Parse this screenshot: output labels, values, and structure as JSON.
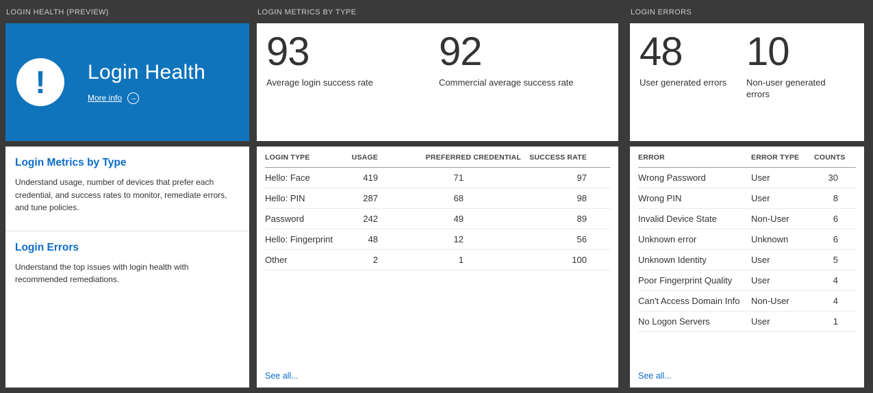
{
  "colors": {
    "background": "#3a3a3a",
    "tile_blue": "#1074bc",
    "link_blue": "#0b6cc8"
  },
  "columns": {
    "health": {
      "header": "LOGIN HEALTH (PREVIEW)",
      "tile": {
        "icon_glyph": "!",
        "title": "Login Health",
        "more_info_label": "More info",
        "arrow_glyph": "→"
      },
      "links": [
        {
          "title": "Login Metrics by Type",
          "description": "Understand usage, number of devices that prefer each credential, and success rates to monitor, remediate errors, and tune policies."
        },
        {
          "title": "Login Errors",
          "description": "Understand the top issues with login health with recommended remediations."
        }
      ]
    },
    "metrics": {
      "header": "LOGIN METRICS BY TYPE",
      "stats": [
        {
          "value": "93",
          "label": "Average login success rate"
        },
        {
          "value": "92",
          "label": "Commercial average success rate"
        }
      ],
      "table": {
        "columns": [
          "LOGIN TYPE",
          "USAGE",
          "PREFERRED CREDENTIAL",
          "SUCCESS RATE"
        ],
        "rows": [
          [
            "Hello: Face",
            "419",
            "71",
            "97"
          ],
          [
            "Hello: PIN",
            "287",
            "68",
            "98"
          ],
          [
            "Password",
            "242",
            "49",
            "89"
          ],
          [
            "Hello: Fingerprint",
            "48",
            "12",
            "56"
          ],
          [
            "Other",
            "2",
            "1",
            "100"
          ]
        ]
      },
      "see_all": "See all..."
    },
    "errors": {
      "header": "LOGIN ERRORS",
      "stats": [
        {
          "value": "48",
          "label": "User generated errors"
        },
        {
          "value": "10",
          "label": "Non-user generated errors"
        }
      ],
      "table": {
        "columns": [
          "ERROR",
          "ERROR TYPE",
          "COUNTS"
        ],
        "rows": [
          [
            "Wrong Password",
            "User",
            "30"
          ],
          [
            "Wrong PIN",
            "User",
            "8"
          ],
          [
            "Invalid Device State",
            "Non-User",
            "6"
          ],
          [
            "Unknown error",
            "Unknown",
            "6"
          ],
          [
            "Unknown Identity",
            "User",
            "5"
          ],
          [
            "Poor Fingerprint Quality",
            "User",
            "4"
          ],
          [
            "Can't Access Domain Info",
            "Non-User",
            "4"
          ],
          [
            "No Logon Servers",
            "User",
            "1"
          ]
        ]
      },
      "see_all": "See all..."
    }
  }
}
